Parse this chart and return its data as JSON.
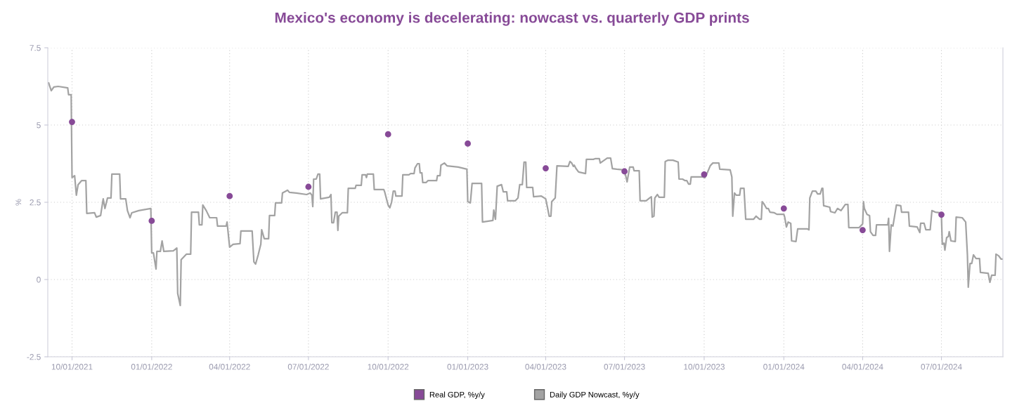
{
  "chart_data": {
    "type": "line",
    "title": "Mexico's economy is decelerating: nowcast vs. quarterly GDP prints",
    "ylabel": "%",
    "xlim": [
      "2021-09-03",
      "2024-09-10"
    ],
    "ylim": [
      -2.5,
      7.5
    ],
    "yticks": [
      -2.5,
      0,
      2.5,
      5,
      7.5
    ],
    "xticks": [
      {
        "value": "2021-10-01",
        "label": "10/01/2021"
      },
      {
        "value": "2022-01-01",
        "label": "01/01/2022"
      },
      {
        "value": "2022-04-01",
        "label": "04/01/2022"
      },
      {
        "value": "2022-07-01",
        "label": "07/01/2022"
      },
      {
        "value": "2022-10-01",
        "label": "10/01/2022"
      },
      {
        "value": "2023-01-01",
        "label": "01/01/2023"
      },
      {
        "value": "2023-04-01",
        "label": "04/01/2023"
      },
      {
        "value": "2023-07-01",
        "label": "07/01/2023"
      },
      {
        "value": "2023-10-01",
        "label": "10/01/2023"
      },
      {
        "value": "2024-01-01",
        "label": "01/01/2024"
      },
      {
        "value": "2024-04-01",
        "label": "04/01/2024"
      },
      {
        "value": "2024-07-01",
        "label": "07/01/2024"
      }
    ],
    "grid": true,
    "legend": "bottom",
    "series": [
      {
        "name": "Real GDP, %y/y",
        "type": "scatter",
        "marker": "circle",
        "color": "#874a97",
        "x": [
          "2021-10-01",
          "2022-01-01",
          "2022-04-01",
          "2022-07-01",
          "2022-10-01",
          "2023-01-01",
          "2023-04-01",
          "2023-07-01",
          "2023-10-01",
          "2024-01-01",
          "2024-04-01",
          "2024-07-01"
        ],
        "values": [
          5.1,
          1.9,
          2.7,
          3.0,
          4.7,
          4.4,
          3.6,
          3.5,
          3.4,
          2.3,
          1.6,
          2.1
        ]
      },
      {
        "name": "Daily GDP Nowcast, %y/y",
        "marker": "none",
        "color": "#a3a3a3",
        "x": [
          "2021-09-04",
          "2021-09-07",
          "2021-09-10",
          "2021-09-15",
          "2021-09-26",
          "2021-09-27",
          "2021-09-30",
          "2021-10-01",
          "2021-10-04",
          "2021-10-06",
          "2021-10-08",
          "2021-10-12",
          "2021-10-17",
          "2021-10-18",
          "2021-10-27",
          "2021-10-29",
          "2021-11-03",
          "2021-11-06",
          "2021-11-08",
          "2021-11-11",
          "2021-11-15",
          "2021-11-16",
          "2021-11-25",
          "2021-11-26",
          "2021-12-02",
          "2021-12-04",
          "2021-12-07",
          "2021-12-09",
          "2021-12-17",
          "2021-12-25",
          "2021-12-31",
          "2022-01-01",
          "2022-01-03",
          "2022-01-06",
          "2022-01-07",
          "2022-01-11",
          "2022-01-13",
          "2022-01-15",
          "2022-01-26",
          "2022-01-30",
          "2022-01-31",
          "2022-02-03",
          "2022-02-04",
          "2022-02-10",
          "2022-02-15",
          "2022-02-16",
          "2022-02-24",
          "2022-02-25",
          "2022-02-28",
          "2022-03-01",
          "2022-03-05",
          "2022-03-09",
          "2022-03-17",
          "2022-03-18",
          "2022-03-28",
          "2022-03-29",
          "2022-04-01",
          "2022-04-05",
          "2022-04-13",
          "2022-04-14",
          "2022-04-27",
          "2022-04-29",
          "2022-05-01",
          "2022-05-04",
          "2022-05-07",
          "2022-05-08",
          "2022-05-11",
          "2022-05-16",
          "2022-05-17",
          "2022-05-23",
          "2022-05-24",
          "2022-05-31",
          "2022-06-01",
          "2022-06-07",
          "2022-06-09",
          "2022-06-17",
          "2022-06-29",
          "2022-07-03",
          "2022-07-05",
          "2022-07-06",
          "2022-07-07",
          "2022-07-10",
          "2022-07-12",
          "2022-07-14",
          "2022-07-15",
          "2022-07-25",
          "2022-07-27",
          "2022-07-28",
          "2022-07-30",
          "2022-08-01",
          "2022-08-03",
          "2022-08-04",
          "2022-08-05",
          "2022-08-09",
          "2022-08-15",
          "2022-08-16",
          "2022-08-24",
          "2022-08-25",
          "2022-08-31",
          "2022-09-01",
          "2022-09-05",
          "2022-09-06",
          "2022-09-07",
          "2022-09-14",
          "2022-09-15",
          "2022-09-26",
          "2022-09-27",
          "2022-10-01",
          "2022-10-03",
          "2022-10-05",
          "2022-10-07",
          "2022-10-09",
          "2022-10-10",
          "2022-10-17",
          "2022-10-18",
          "2022-10-25",
          "2022-10-27",
          "2022-10-31",
          "2022-11-01",
          "2022-11-04",
          "2022-11-06",
          "2022-11-07",
          "2022-11-09",
          "2022-11-10",
          "2022-11-14",
          "2022-11-16",
          "2022-11-26",
          "2022-11-27",
          "2022-11-30",
          "2022-12-01",
          "2022-12-05",
          "2022-12-08",
          "2022-12-21",
          "2022-12-31",
          "2023-01-01",
          "2023-01-04",
          "2023-01-06",
          "2023-01-17",
          "2023-01-18",
          "2023-01-30",
          "2023-01-31",
          "2023-02-02",
          "2023-02-04",
          "2023-02-09",
          "2023-02-11",
          "2023-02-15",
          "2023-02-16",
          "2023-02-25",
          "2023-02-28",
          "2023-03-02",
          "2023-03-05",
          "2023-03-07",
          "2023-03-09",
          "2023-03-10",
          "2023-03-17",
          "2023-03-18",
          "2023-03-27",
          "2023-04-01",
          "2023-04-03",
          "2023-04-05",
          "2023-04-07",
          "2023-04-08",
          "2023-04-12",
          "2023-04-14",
          "2023-04-27",
          "2023-04-29",
          "2023-05-01",
          "2023-05-03",
          "2023-05-04",
          "2023-05-06",
          "2023-05-09",
          "2023-05-17",
          "2023-05-18",
          "2023-05-26",
          "2023-05-28",
          "2023-06-02",
          "2023-06-03",
          "2023-06-11",
          "2023-06-15",
          "2023-06-17",
          "2023-06-22",
          "2023-06-30",
          "2023-07-02",
          "2023-07-04",
          "2023-07-07",
          "2023-07-11",
          "2023-07-12",
          "2023-07-18",
          "2023-07-19",
          "2023-07-26",
          "2023-07-30",
          "2023-08-01",
          "2023-08-02",
          "2023-08-04",
          "2023-08-05",
          "2023-08-08",
          "2023-08-10",
          "2023-08-16",
          "2023-08-17",
          "2023-08-20",
          "2023-08-26",
          "2023-09-01",
          "2023-09-02",
          "2023-09-06",
          "2023-09-09",
          "2023-09-11",
          "2023-09-13",
          "2023-09-15",
          "2023-09-16",
          "2023-09-29",
          "2023-10-02",
          "2023-10-05",
          "2023-10-08",
          "2023-10-11",
          "2023-10-18",
          "2023-10-19",
          "2023-10-31",
          "2023-11-02",
          "2023-11-03",
          "2023-11-05",
          "2023-11-07",
          "2023-11-11",
          "2023-11-12",
          "2023-11-16",
          "2023-11-18",
          "2023-11-27",
          "2023-11-30",
          "2023-12-04",
          "2023-12-06",
          "2023-12-07",
          "2023-12-09",
          "2023-12-12",
          "2023-12-14",
          "2023-12-16",
          "2023-12-21",
          "2023-12-24",
          "2024-01-01",
          "2024-01-02",
          "2024-01-04",
          "2024-01-06",
          "2024-01-09",
          "2024-01-10",
          "2024-01-15",
          "2024-01-17",
          "2024-01-28",
          "2024-01-30",
          "2024-01-31",
          "2024-02-03",
          "2024-02-07",
          "2024-02-09",
          "2024-02-12",
          "2024-02-14",
          "2024-02-15",
          "2024-02-16",
          "2024-02-23",
          "2024-02-24",
          "2024-02-29",
          "2024-03-03",
          "2024-03-07",
          "2024-03-12",
          "2024-03-15",
          "2024-03-16",
          "2024-03-28",
          "2024-04-01",
          "2024-04-02",
          "2024-04-03",
          "2024-04-06",
          "2024-04-09",
          "2024-04-10",
          "2024-04-13",
          "2024-04-16",
          "2024-04-17",
          "2024-04-30",
          "2024-05-01",
          "2024-05-02",
          "2024-05-04",
          "2024-05-06",
          "2024-05-10",
          "2024-05-15",
          "2024-05-16",
          "2024-05-24",
          "2024-05-25",
          "2024-06-03",
          "2024-06-06",
          "2024-06-07",
          "2024-06-11",
          "2024-06-13",
          "2024-06-18",
          "2024-06-20",
          "2024-06-24",
          "2024-06-29",
          "2024-07-01",
          "2024-07-02",
          "2024-07-04",
          "2024-07-05",
          "2024-07-07",
          "2024-07-09",
          "2024-07-10",
          "2024-07-12",
          "2024-07-17",
          "2024-07-18",
          "2024-07-25",
          "2024-07-29",
          "2024-07-31",
          "2024-08-01",
          "2024-08-03",
          "2024-08-05",
          "2024-08-07",
          "2024-08-10",
          "2024-08-14",
          "2024-08-15",
          "2024-08-24",
          "2024-08-26",
          "2024-08-28",
          "2024-09-01",
          "2024-09-02",
          "2024-09-05",
          "2024-09-08",
          "2024-09-10"
        ],
        "values": [
          6.36,
          6.11,
          6.23,
          6.25,
          6.2,
          5.98,
          5.98,
          3.3,
          3.36,
          2.73,
          3.07,
          3.2,
          3.2,
          2.14,
          2.16,
          2.02,
          2.07,
          2.61,
          2.3,
          2.64,
          2.64,
          3.41,
          3.41,
          2.61,
          2.61,
          2.23,
          2.0,
          2.16,
          2.23,
          2.27,
          2.3,
          0.86,
          0.86,
          0.34,
          0.91,
          0.91,
          1.25,
          0.91,
          0.93,
          1.02,
          -0.45,
          -0.84,
          0.64,
          0.82,
          0.82,
          2.18,
          2.18,
          1.77,
          1.77,
          2.41,
          2.23,
          2.0,
          2.0,
          1.73,
          1.73,
          1.86,
          1.05,
          1.14,
          1.16,
          1.57,
          1.57,
          0.57,
          0.5,
          0.8,
          1.14,
          1.61,
          1.32,
          1.32,
          2.07,
          2.07,
          2.48,
          2.48,
          2.8,
          2.89,
          2.82,
          2.8,
          2.75,
          2.8,
          2.73,
          2.36,
          3.25,
          3.25,
          3.41,
          3.41,
          2.61,
          2.66,
          2.75,
          1.84,
          1.84,
          2.18,
          2.18,
          1.59,
          2.05,
          2.16,
          2.16,
          2.95,
          2.95,
          3.05,
          3.05,
          3.39,
          3.39,
          3.3,
          3.41,
          3.41,
          2.91,
          2.91,
          2.84,
          2.41,
          2.32,
          2.5,
          2.86,
          2.86,
          2.7,
          2.7,
          3.39,
          3.39,
          3.43,
          3.43,
          3.61,
          3.75,
          3.75,
          3.45,
          3.45,
          3.14,
          3.14,
          3.2,
          3.2,
          3.36,
          3.36,
          3.7,
          3.77,
          3.68,
          3.64,
          3.57,
          2.52,
          2.48,
          3.11,
          3.11,
          1.86,
          1.91,
          2.25,
          1.95,
          3.02,
          3.07,
          2.84,
          2.84,
          2.55,
          2.55,
          2.64,
          3.07,
          3.07,
          3.8,
          3.8,
          2.98,
          2.98,
          2.68,
          2.7,
          2.61,
          2.34,
          2.05,
          2.05,
          2.52,
          2.64,
          3.68,
          3.66,
          3.82,
          3.77,
          3.66,
          3.7,
          3.59,
          3.48,
          3.43,
          3.89,
          3.89,
          3.91,
          3.91,
          3.77,
          3.93,
          3.93,
          3.59,
          3.57,
          3.55,
          3.41,
          3.16,
          3.64,
          3.64,
          3.52,
          3.52,
          2.55,
          2.55,
          2.64,
          2.68,
          2.02,
          2.05,
          2.64,
          2.75,
          2.66,
          2.66,
          3.82,
          3.86,
          3.86,
          3.8,
          3.25,
          3.25,
          3.2,
          3.2,
          3.09,
          3.09,
          3.32,
          3.32,
          3.3,
          3.48,
          3.68,
          3.77,
          3.77,
          3.57,
          3.55,
          3.32,
          2.05,
          2.8,
          2.73,
          2.73,
          2.95,
          2.95,
          1.95,
          1.95,
          2.05,
          1.95,
          1.95,
          2.52,
          2.45,
          2.3,
          2.3,
          2.18,
          2.16,
          2.11,
          2.11,
          2.02,
          1.7,
          1.86,
          1.82,
          1.25,
          1.23,
          1.64,
          1.64,
          1.61,
          2.64,
          2.86,
          2.86,
          2.77,
          2.77,
          2.95,
          2.95,
          2.39,
          2.34,
          2.2,
          2.16,
          2.3,
          2.23,
          2.43,
          2.43,
          1.68,
          1.68,
          1.8,
          2.52,
          2.3,
          2.11,
          2.07,
          1.55,
          1.43,
          1.43,
          1.77,
          1.77,
          1.98,
          0.91,
          1.77,
          1.73,
          2.41,
          2.39,
          2.18,
          2.18,
          1.73,
          1.7,
          1.52,
          1.82,
          1.82,
          1.61,
          1.61,
          2.23,
          2.18,
          2.16,
          2.05,
          1.14,
          1.18,
          0.95,
          1.36,
          1.39,
          1.55,
          1.25,
          1.23,
          2.02,
          2.0,
          1.86,
          0.8,
          -0.25,
          0.52,
          0.52,
          0.8,
          0.68,
          0.68,
          0.23,
          0.2,
          -0.09,
          0.14,
          0.14,
          0.82,
          0.77,
          0.66,
          0.66
        ]
      }
    ]
  }
}
